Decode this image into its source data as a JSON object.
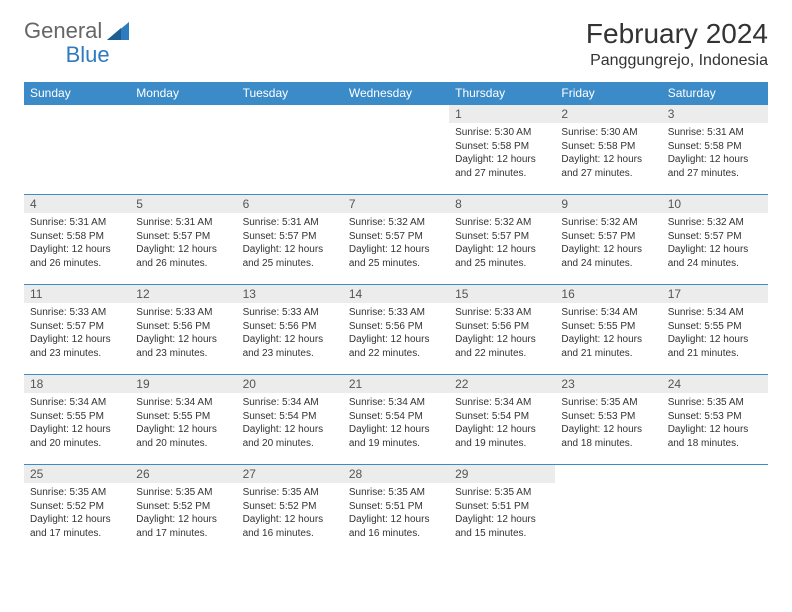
{
  "logo": {
    "text1": "General",
    "text2": "Blue"
  },
  "title": "February 2024",
  "location": "Panggungrejo, Indonesia",
  "colors": {
    "header_bg": "#3b8bc9",
    "header_text": "#ffffff",
    "daynum_bg": "#ececec",
    "row_border": "#3b8bc9",
    "brand_blue": "#2f7bbf"
  },
  "weekdays": [
    "Sunday",
    "Monday",
    "Tuesday",
    "Wednesday",
    "Thursday",
    "Friday",
    "Saturday"
  ],
  "leading_blanks": 4,
  "days": [
    {
      "n": 1,
      "sunrise": "5:30 AM",
      "sunset": "5:58 PM",
      "daylight": "12 hours and 27 minutes."
    },
    {
      "n": 2,
      "sunrise": "5:30 AM",
      "sunset": "5:58 PM",
      "daylight": "12 hours and 27 minutes."
    },
    {
      "n": 3,
      "sunrise": "5:31 AM",
      "sunset": "5:58 PM",
      "daylight": "12 hours and 27 minutes."
    },
    {
      "n": 4,
      "sunrise": "5:31 AM",
      "sunset": "5:58 PM",
      "daylight": "12 hours and 26 minutes."
    },
    {
      "n": 5,
      "sunrise": "5:31 AM",
      "sunset": "5:57 PM",
      "daylight": "12 hours and 26 minutes."
    },
    {
      "n": 6,
      "sunrise": "5:31 AM",
      "sunset": "5:57 PM",
      "daylight": "12 hours and 25 minutes."
    },
    {
      "n": 7,
      "sunrise": "5:32 AM",
      "sunset": "5:57 PM",
      "daylight": "12 hours and 25 minutes."
    },
    {
      "n": 8,
      "sunrise": "5:32 AM",
      "sunset": "5:57 PM",
      "daylight": "12 hours and 25 minutes."
    },
    {
      "n": 9,
      "sunrise": "5:32 AM",
      "sunset": "5:57 PM",
      "daylight": "12 hours and 24 minutes."
    },
    {
      "n": 10,
      "sunrise": "5:32 AM",
      "sunset": "5:57 PM",
      "daylight": "12 hours and 24 minutes."
    },
    {
      "n": 11,
      "sunrise": "5:33 AM",
      "sunset": "5:57 PM",
      "daylight": "12 hours and 23 minutes."
    },
    {
      "n": 12,
      "sunrise": "5:33 AM",
      "sunset": "5:56 PM",
      "daylight": "12 hours and 23 minutes."
    },
    {
      "n": 13,
      "sunrise": "5:33 AM",
      "sunset": "5:56 PM",
      "daylight": "12 hours and 23 minutes."
    },
    {
      "n": 14,
      "sunrise": "5:33 AM",
      "sunset": "5:56 PM",
      "daylight": "12 hours and 22 minutes."
    },
    {
      "n": 15,
      "sunrise": "5:33 AM",
      "sunset": "5:56 PM",
      "daylight": "12 hours and 22 minutes."
    },
    {
      "n": 16,
      "sunrise": "5:34 AM",
      "sunset": "5:55 PM",
      "daylight": "12 hours and 21 minutes."
    },
    {
      "n": 17,
      "sunrise": "5:34 AM",
      "sunset": "5:55 PM",
      "daylight": "12 hours and 21 minutes."
    },
    {
      "n": 18,
      "sunrise": "5:34 AM",
      "sunset": "5:55 PM",
      "daylight": "12 hours and 20 minutes."
    },
    {
      "n": 19,
      "sunrise": "5:34 AM",
      "sunset": "5:55 PM",
      "daylight": "12 hours and 20 minutes."
    },
    {
      "n": 20,
      "sunrise": "5:34 AM",
      "sunset": "5:54 PM",
      "daylight": "12 hours and 20 minutes."
    },
    {
      "n": 21,
      "sunrise": "5:34 AM",
      "sunset": "5:54 PM",
      "daylight": "12 hours and 19 minutes."
    },
    {
      "n": 22,
      "sunrise": "5:34 AM",
      "sunset": "5:54 PM",
      "daylight": "12 hours and 19 minutes."
    },
    {
      "n": 23,
      "sunrise": "5:35 AM",
      "sunset": "5:53 PM",
      "daylight": "12 hours and 18 minutes."
    },
    {
      "n": 24,
      "sunrise": "5:35 AM",
      "sunset": "5:53 PM",
      "daylight": "12 hours and 18 minutes."
    },
    {
      "n": 25,
      "sunrise": "5:35 AM",
      "sunset": "5:52 PM",
      "daylight": "12 hours and 17 minutes."
    },
    {
      "n": 26,
      "sunrise": "5:35 AM",
      "sunset": "5:52 PM",
      "daylight": "12 hours and 17 minutes."
    },
    {
      "n": 27,
      "sunrise": "5:35 AM",
      "sunset": "5:52 PM",
      "daylight": "12 hours and 16 minutes."
    },
    {
      "n": 28,
      "sunrise": "5:35 AM",
      "sunset": "5:51 PM",
      "daylight": "12 hours and 16 minutes."
    },
    {
      "n": 29,
      "sunrise": "5:35 AM",
      "sunset": "5:51 PM",
      "daylight": "12 hours and 15 minutes."
    }
  ],
  "labels": {
    "sunrise": "Sunrise:",
    "sunset": "Sunset:",
    "daylight": "Daylight:"
  }
}
